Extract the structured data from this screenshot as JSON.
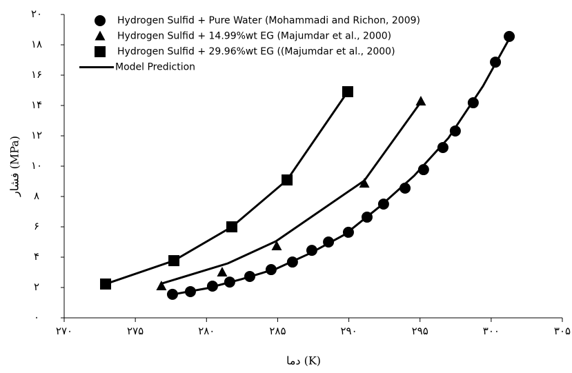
{
  "chart_data": {
    "type": "scatter",
    "xlabel": "دما (K)",
    "ylabel": "فشار (MPa)",
    "xlim": [
      270,
      305
    ],
    "ylim": [
      0,
      20
    ],
    "xticks": [
      {
        "value": 270,
        "label": "۲۷۰"
      },
      {
        "value": 275,
        "label": "۲۷۵"
      },
      {
        "value": 280,
        "label": "۲۸۰"
      },
      {
        "value": 285,
        "label": "۲۸۵"
      },
      {
        "value": 290,
        "label": "۲۹۰"
      },
      {
        "value": 295,
        "label": "۲۹۵"
      },
      {
        "value": 300,
        "label": "۳۰۰"
      },
      {
        "value": 305,
        "label": "۳۰۵"
      }
    ],
    "yticks": [
      {
        "value": 0,
        "label": "۰"
      },
      {
        "value": 2,
        "label": "۲"
      },
      {
        "value": 4,
        "label": "۴"
      },
      {
        "value": 6,
        "label": "۶"
      },
      {
        "value": 8,
        "label": "۸"
      },
      {
        "value": 10,
        "label": "۱۰"
      },
      {
        "value": 12,
        "label": "۱۲"
      },
      {
        "value": 14,
        "label": "۱۴"
      },
      {
        "value": 16,
        "label": "۱۶"
      },
      {
        "value": 18,
        "label": "۱۸"
      },
      {
        "value": 20,
        "label": "۲۰"
      }
    ],
    "grid": false,
    "legend": "upper left",
    "series": [
      {
        "name": "Hydrogen Sulfid + Pure Water (Mohammadi and Richon, 2009)",
        "color": "#000000",
        "marker": "circle",
        "x": [
          277.61,
          278.87,
          280.42,
          281.63,
          283.04,
          284.54,
          286.04,
          287.4,
          288.57,
          289.97,
          291.28,
          292.44,
          293.95,
          295.25,
          296.61,
          297.48,
          298.74,
          300.3,
          301.27
        ],
        "values": [
          1.55,
          1.73,
          2.09,
          2.36,
          2.73,
          3.18,
          3.68,
          4.45,
          5.0,
          5.64,
          6.64,
          7.5,
          8.55,
          9.77,
          11.23,
          12.32,
          14.18,
          16.86,
          18.55
        ]
      },
      {
        "name": "Hydrogen Sulfid + 14.99%wt EG (Majumdar et al., 2000)",
        "color": "#000000",
        "marker": "triangle",
        "x": [
          276.83,
          281.1,
          284.93,
          291.09,
          295.06
        ],
        "values": [
          2.09,
          3.0,
          4.73,
          8.86,
          14.27
        ]
      },
      {
        "name": "Hydrogen Sulfid + 29.96%wt EG ((Majumdar et al., 2000)",
        "color": "#000000",
        "marker": "square",
        "x": [
          272.91,
          277.71,
          281.78,
          285.66,
          289.92
        ],
        "values": [
          2.23,
          3.77,
          6.0,
          9.09,
          14.91
        ]
      },
      {
        "name": "Model Prediction",
        "color": "#000000",
        "marker": "line",
        "x": [
          277.37,
          280.03,
          282.46,
          284.88,
          287.31,
          289.73,
          292.15,
          294.58,
          297.0,
          299.42,
          301.36,
          null,
          276.74,
          281.5,
          284.88,
          291.09,
          295.06,
          null,
          272.91,
          277.71,
          281.78,
          285.66,
          289.92
        ],
        "values": [
          1.5,
          1.95,
          2.55,
          3.23,
          4.27,
          5.5,
          7.32,
          9.36,
          11.86,
          15.27,
          18.55,
          null,
          2.23,
          3.59,
          5.05,
          9.05,
          14.23,
          null,
          2.23,
          3.77,
          6.0,
          9.09,
          14.91
        ]
      }
    ]
  }
}
